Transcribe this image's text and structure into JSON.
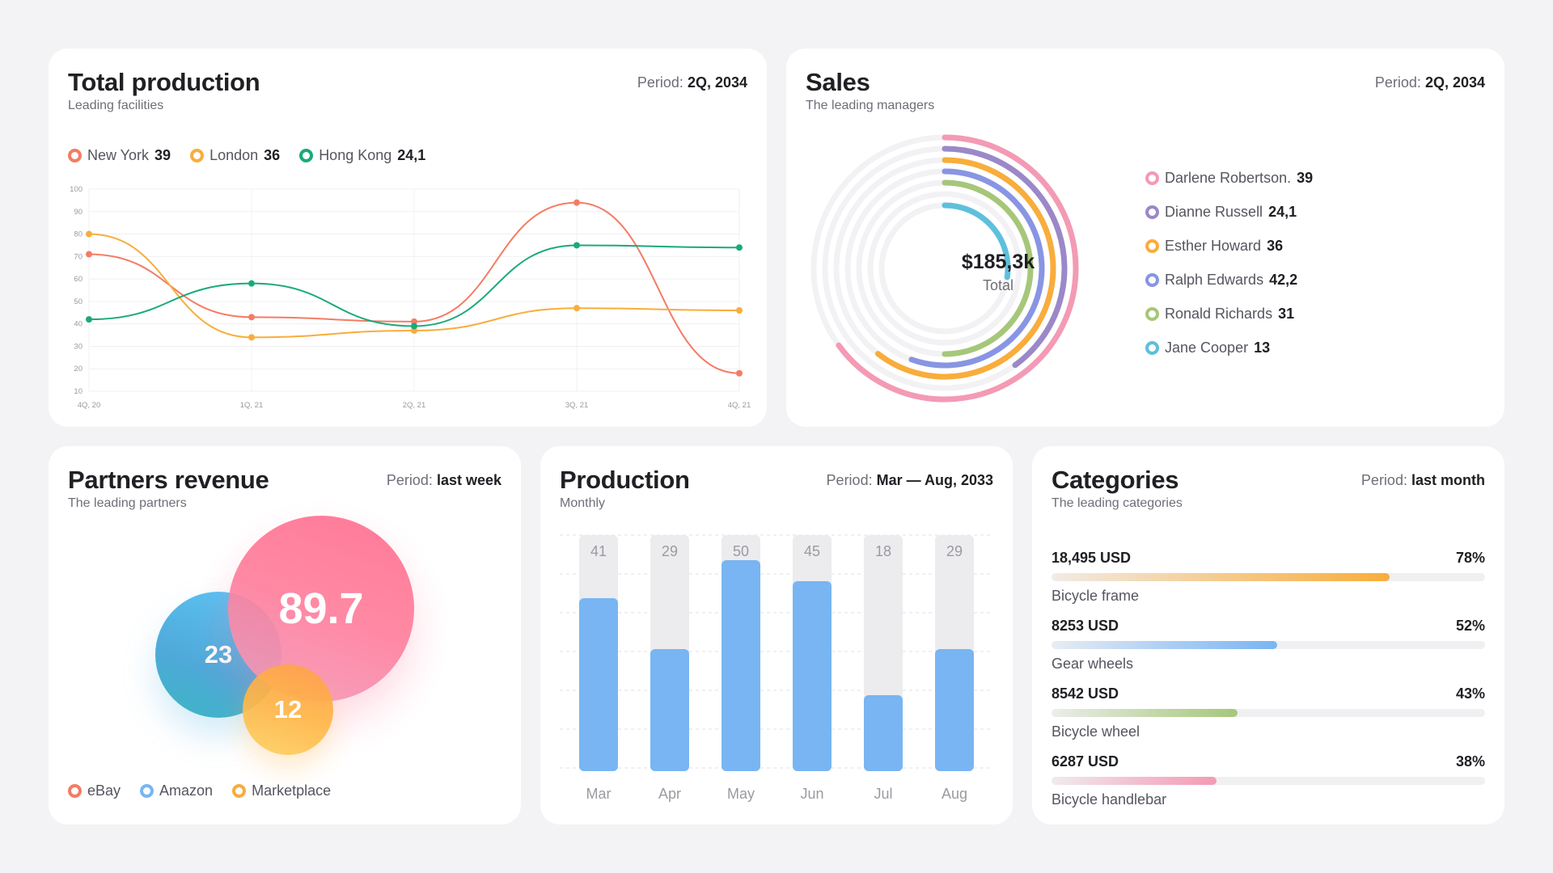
{
  "total_production": {
    "title": "Total production",
    "subtitle": "Leading facilities",
    "period_label": "Period:",
    "period_value": "2Q, 2034",
    "legend": [
      {
        "name": "New York",
        "value": "39",
        "color": "#f47c65"
      },
      {
        "name": "London",
        "value": "36",
        "color": "#f8ad3c"
      },
      {
        "name": "Hong Kong",
        "value": "24,1",
        "color": "#1aaa7a"
      }
    ]
  },
  "sales": {
    "title": "Sales",
    "subtitle": "The leading managers",
    "period_label": "Period:",
    "period_value": "2Q, 2034",
    "total_value": "$185,3k",
    "total_label": "Total",
    "managers": [
      {
        "name": "Darlene Robertson.",
        "value": "39",
        "color": "#f49ab4"
      },
      {
        "name": "Dianne Russell",
        "value": "24,1",
        "color": "#9b88c8"
      },
      {
        "name": "Esther Howard",
        "value": "36",
        "color": "#f8ad3c"
      },
      {
        "name": "Ralph Edwards",
        "value": "42,2",
        "color": "#8895e3"
      },
      {
        "name": "Ronald Richards",
        "value": "31",
        "color": "#a6c77a"
      },
      {
        "name": "Jane Cooper",
        "value": "13",
        "color": "#5ec0dc"
      }
    ]
  },
  "partners": {
    "title": "Partners revenue",
    "subtitle": "The leading partners",
    "period_label": "Period:",
    "period_value": "last week",
    "bubbles": {
      "big": "89.7",
      "mid": "23",
      "small": "12"
    },
    "legend": [
      {
        "name": "eBay",
        "color": "#f47c65"
      },
      {
        "name": "Amazon",
        "color": "#79b5f3"
      },
      {
        "name": "Marketplace",
        "color": "#f8ad3c"
      }
    ]
  },
  "production": {
    "title": "Production",
    "subtitle": "Monthly",
    "period_label": "Period:",
    "period_value": "Mar — Aug, 2033"
  },
  "categories": {
    "title": "Categories",
    "subtitle": "The leading categories",
    "period_label": "Period:",
    "period_value": "last month",
    "items": [
      {
        "amount": "18,495 USD",
        "percent": "78%",
        "pct": 78,
        "name": "Bicycle frame",
        "color": "#f8ad3c"
      },
      {
        "amount": "8253 USD",
        "percent": "52%",
        "pct": 52,
        "name": "Gear wheels",
        "color": "#79b5f3"
      },
      {
        "amount": "8542 USD",
        "percent": "43%",
        "pct": 43,
        "name": "Bicycle wheel",
        "color": "#a6c77a"
      },
      {
        "amount": "6287 USD",
        "percent": "38%",
        "pct": 38,
        "name": "Bicycle handlebar",
        "color": "#f49ab4"
      }
    ]
  },
  "chart_data": [
    {
      "type": "line",
      "x": [
        "4Q, 20",
        "1Q, 21",
        "2Q, 21",
        "3Q, 21",
        "4Q, 21"
      ],
      "yticks": [
        10,
        20,
        30,
        40,
        50,
        60,
        70,
        80,
        90,
        100
      ],
      "ylim": [
        10,
        100
      ],
      "grid": true,
      "series": [
        {
          "name": "New York",
          "values": [
            71,
            43,
            41,
            94,
            18
          ],
          "color": "#f47c65"
        },
        {
          "name": "London",
          "values": [
            80,
            34,
            37,
            47,
            46
          ],
          "color": "#f8ad3c"
        },
        {
          "name": "Hong Kong",
          "values": [
            42,
            58,
            39,
            75,
            74
          ],
          "color": "#1aaa7a"
        }
      ]
    },
    {
      "type": "bar",
      "categories": [
        "Mar",
        "Apr",
        "May",
        "Jun",
        "Jul",
        "Aug"
      ],
      "values": [
        41,
        29,
        50,
        45,
        18,
        29
      ],
      "ylim": [
        0,
        56
      ]
    }
  ]
}
